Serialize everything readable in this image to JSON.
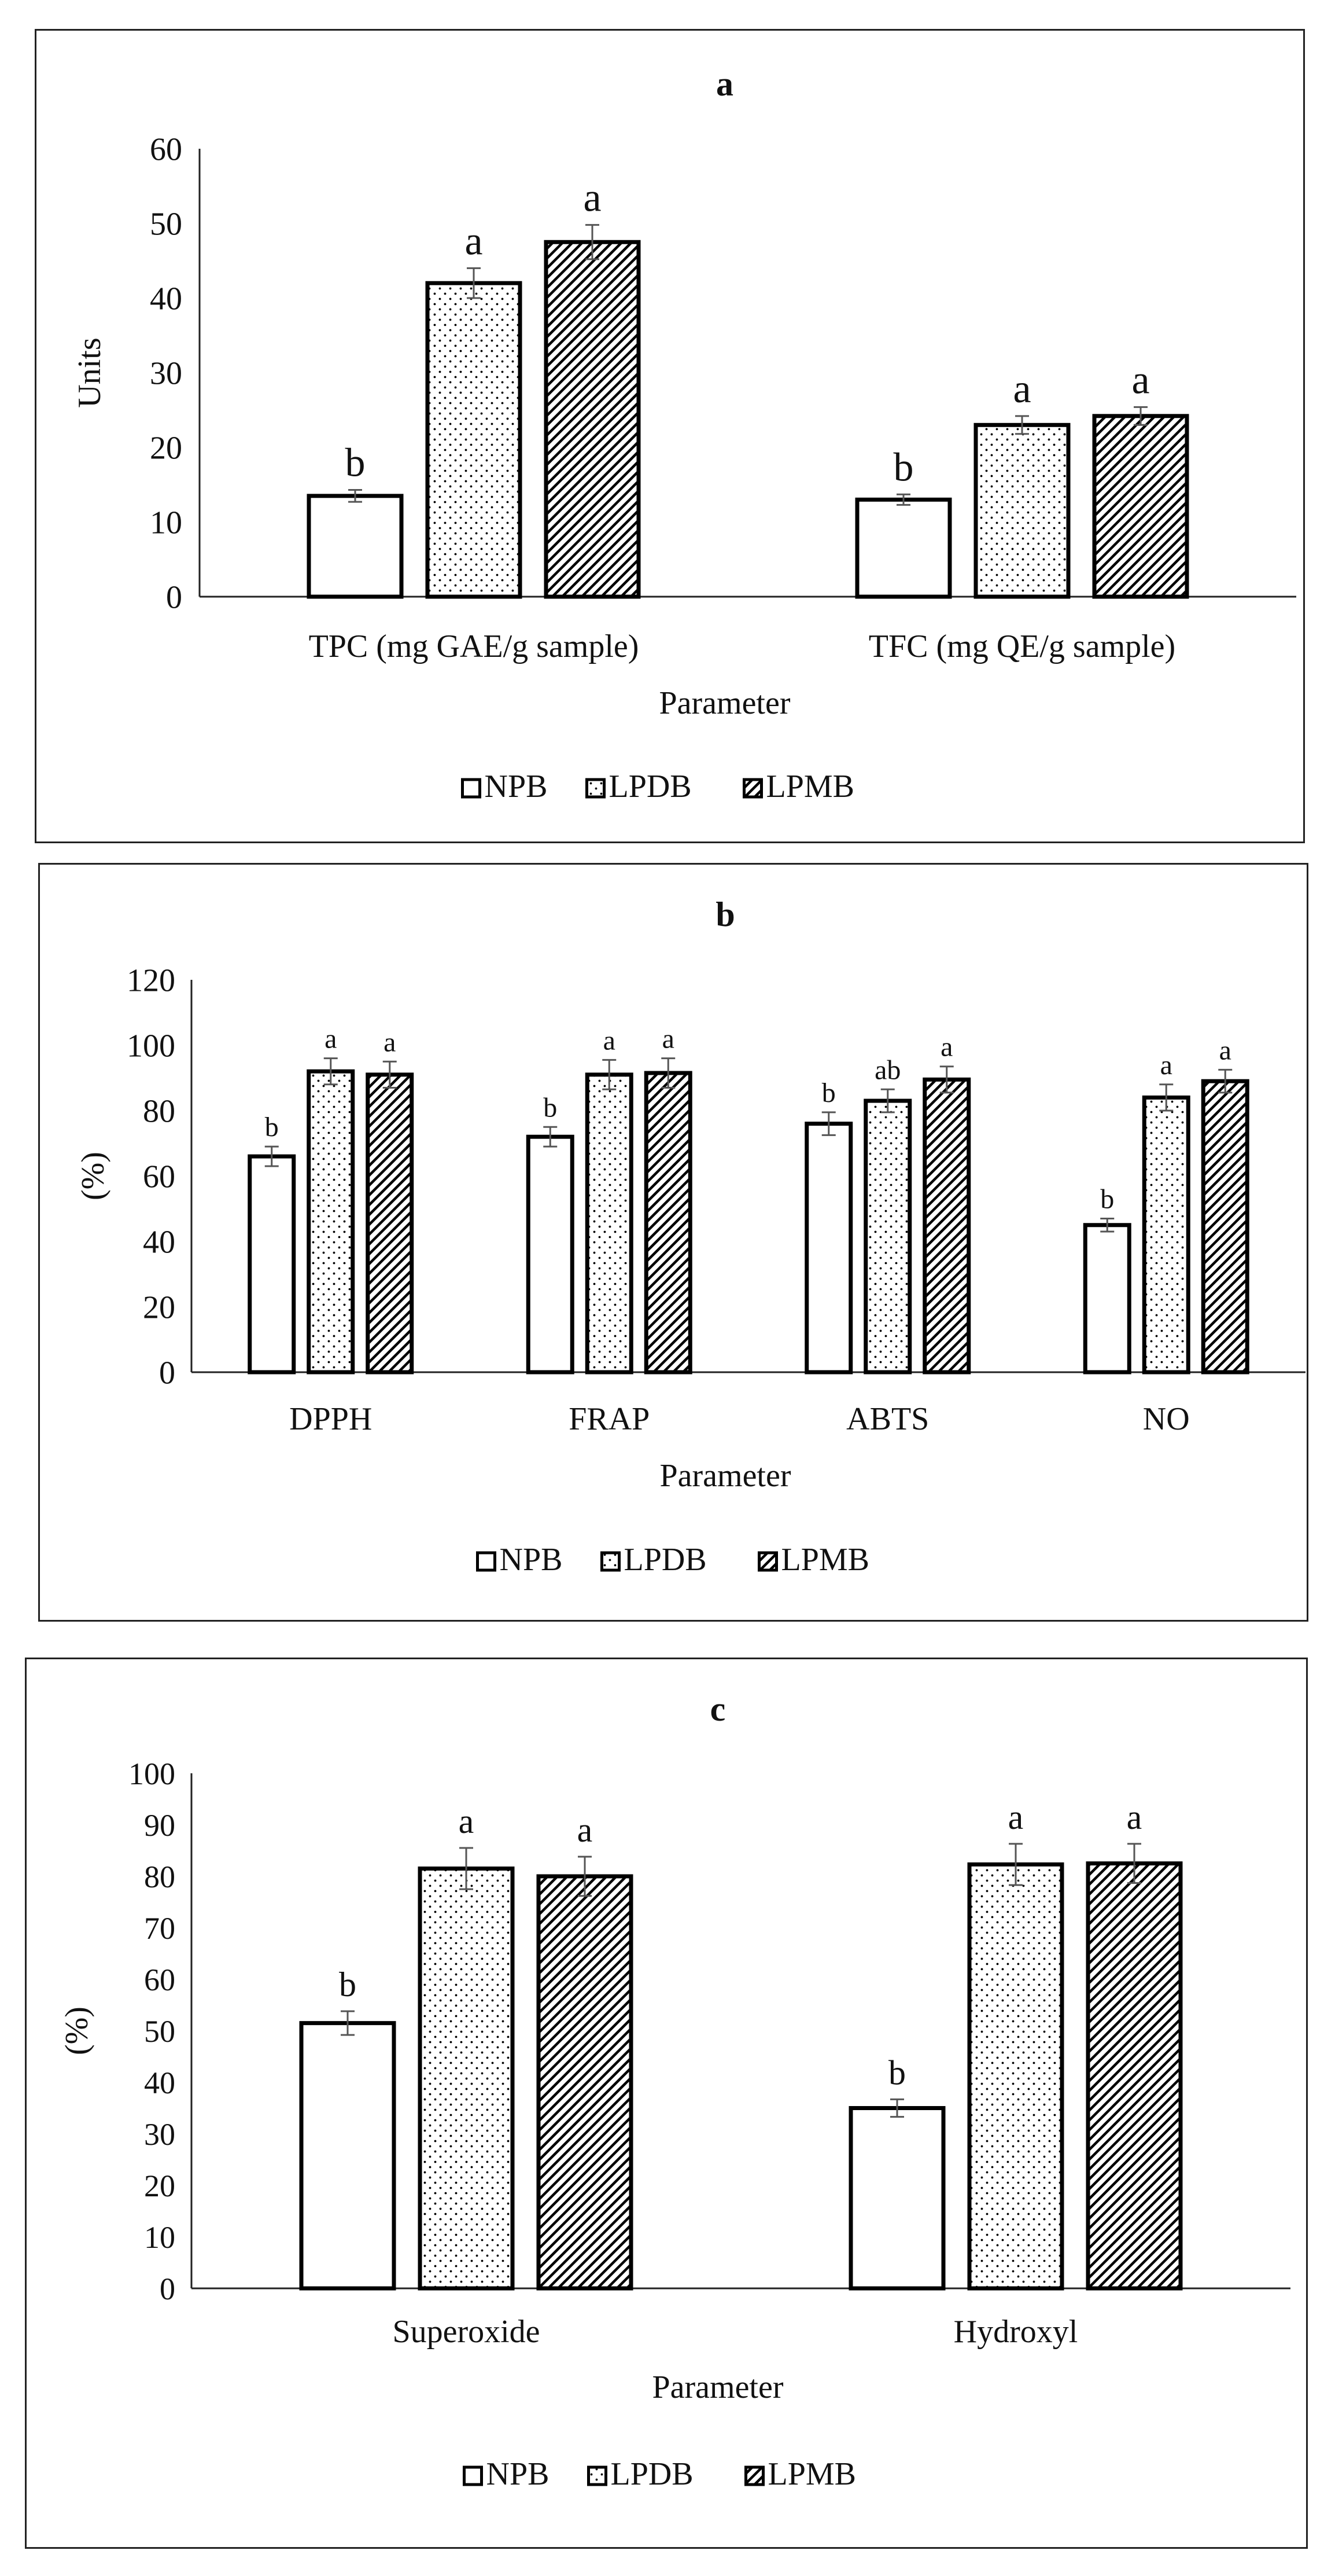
{
  "colors": {
    "axis": "#222222",
    "bar_stroke": "#000000",
    "bar_fill": "#ffffff",
    "error_bar": "#555555"
  },
  "legend": {
    "items": [
      {
        "label": "NPB",
        "pattern": "plain"
      },
      {
        "label": "LPDB",
        "pattern": "dots"
      },
      {
        "label": "LPMB",
        "pattern": "hatch"
      }
    ]
  },
  "chart_data": [
    {
      "panel": "a",
      "type": "bar",
      "title": "a",
      "xlabel": "Parameter",
      "ylabel": "Units",
      "ylim": [
        0,
        60
      ],
      "yticks": [
        0,
        10,
        20,
        30,
        40,
        50,
        60
      ],
      "categories": [
        "TPC (mg GAE/g sample)",
        "TFC (mg QE/g sample)"
      ],
      "series": [
        {
          "name": "NPB",
          "values": [
            13.5,
            13.0
          ],
          "errors": [
            0.8,
            0.7
          ],
          "letters": [
            "b",
            "b"
          ]
        },
        {
          "name": "LPDB",
          "values": [
            42.0,
            23.0
          ],
          "errors": [
            2.0,
            1.2
          ],
          "letters": [
            "a",
            "a"
          ]
        },
        {
          "name": "LPMB",
          "values": [
            47.5,
            24.2
          ],
          "errors": [
            2.3,
            1.2
          ],
          "letters": [
            "a",
            "a"
          ]
        }
      ],
      "legend_position": "bottom"
    },
    {
      "panel": "b",
      "type": "bar",
      "title": "b",
      "xlabel": "Parameter",
      "ylabel": "(%)",
      "ylim": [
        0,
        120
      ],
      "yticks": [
        0,
        20,
        40,
        60,
        80,
        100,
        120
      ],
      "categories": [
        "DPPH",
        "FRAP",
        "ABTS",
        "NO"
      ],
      "series": [
        {
          "name": "NPB",
          "values": [
            66,
            72,
            76,
            45
          ],
          "errors": [
            3,
            3,
            3.5,
            2
          ],
          "letters": [
            "b",
            "b",
            "b",
            "b"
          ]
        },
        {
          "name": "LPDB",
          "values": [
            92,
            91,
            83,
            84
          ],
          "errors": [
            4,
            4.5,
            3.5,
            4
          ],
          "letters": [
            "a",
            "a",
            "ab",
            "a"
          ]
        },
        {
          "name": "LPMB",
          "values": [
            91,
            91.5,
            89.5,
            89
          ],
          "errors": [
            4,
            4.5,
            4,
            3.5
          ],
          "letters": [
            "a",
            "a",
            "a",
            "a"
          ]
        }
      ],
      "legend_position": "bottom"
    },
    {
      "panel": "c",
      "type": "bar",
      "title": "c",
      "xlabel": "Parameter",
      "ylabel": "(%)",
      "ylim": [
        0,
        100
      ],
      "yticks": [
        0,
        10,
        20,
        30,
        40,
        50,
        60,
        70,
        80,
        90,
        100
      ],
      "categories": [
        "Superoxide",
        "Hydroxyl"
      ],
      "series": [
        {
          "name": "NPB",
          "values": [
            51.5,
            35
          ],
          "errors": [
            2.3,
            1.7
          ],
          "letters": [
            "b",
            "b"
          ]
        },
        {
          "name": "LPDB",
          "values": [
            81.5,
            82.3
          ],
          "errors": [
            4,
            4
          ],
          "letters": [
            "a",
            "a"
          ]
        },
        {
          "name": "LPMB",
          "values": [
            80,
            82.5
          ],
          "errors": [
            3.8,
            3.8
          ],
          "letters": [
            "a",
            "a"
          ]
        }
      ],
      "legend_position": "bottom"
    }
  ]
}
